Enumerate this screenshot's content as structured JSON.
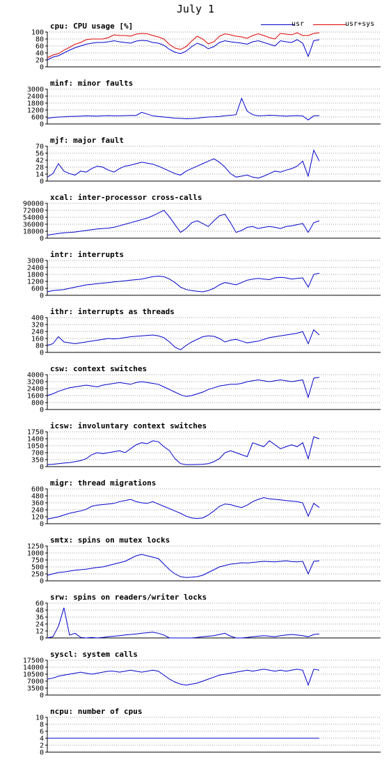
{
  "title": "July 1",
  "legend": [
    {
      "label": "usr",
      "color": "#0000cc"
    },
    {
      "label": "usr+sys",
      "color": "#dd0000"
    }
  ],
  "chart_data": [
    {
      "type": "line",
      "id": "cpu",
      "title": "cpu: CPU usage [%]",
      "ylim": [
        0,
        100
      ],
      "yticks": [
        "100",
        "80",
        "60",
        "40",
        "20",
        "0"
      ],
      "grid": true,
      "series": [
        {
          "name": "usr",
          "color": "#0000cc",
          "values": [
            20,
            28,
            32,
            40,
            48,
            55,
            60,
            65,
            68,
            70,
            70,
            72,
            75,
            72,
            70,
            68,
            74,
            76,
            75,
            70,
            68,
            62,
            50,
            42,
            38,
            45,
            58,
            68,
            62,
            52,
            58,
            70,
            75,
            72,
            70,
            68,
            65,
            72,
            75,
            70,
            65,
            60,
            75,
            72,
            70,
            78,
            68,
            30,
            75,
            78
          ]
        },
        {
          "name": "usr+sys",
          "color": "#dd0000",
          "values": [
            26,
            34,
            38,
            48,
            56,
            65,
            70,
            78,
            80,
            80,
            80,
            84,
            92,
            90,
            90,
            88,
            94,
            96,
            95,
            90,
            86,
            80,
            64,
            54,
            50,
            58,
            74,
            88,
            80,
            66,
            72,
            88,
            95,
            92,
            88,
            86,
            82,
            90,
            95,
            90,
            84,
            80,
            96,
            94,
            92,
            98,
            90,
            90,
            96,
            98
          ]
        }
      ]
    },
    {
      "type": "line",
      "id": "minf",
      "title": "minf: minor faults",
      "ylim": [
        0,
        3000
      ],
      "yticks": [
        "3000",
        "2400",
        "1800",
        "1200",
        "600",
        "0"
      ],
      "grid": true,
      "series": [
        {
          "color": "#0000cc",
          "values": [
            500,
            550,
            600,
            620,
            640,
            660,
            680,
            700,
            690,
            680,
            700,
            720,
            710,
            700,
            720,
            730,
            740,
            1000,
            850,
            700,
            650,
            600,
            550,
            500,
            480,
            450,
            460,
            500,
            550,
            600,
            620,
            650,
            700,
            750,
            800,
            2200,
            1100,
            800,
            700,
            720,
            750,
            740,
            700,
            680,
            700,
            720,
            690,
            350,
            700,
            720
          ]
        }
      ]
    },
    {
      "type": "line",
      "id": "mjf",
      "title": "mjf: major fault",
      "ylim": [
        0,
        70
      ],
      "yticks": [
        "70",
        "56",
        "42",
        "28",
        "14",
        "0"
      ],
      "grid": true,
      "series": [
        {
          "color": "#0000cc",
          "values": [
            8,
            15,
            35,
            20,
            15,
            12,
            20,
            18,
            25,
            30,
            28,
            22,
            18,
            25,
            30,
            32,
            35,
            38,
            36,
            34,
            30,
            25,
            20,
            15,
            12,
            20,
            25,
            30,
            35,
            40,
            45,
            38,
            28,
            15,
            8,
            10,
            12,
            8,
            6,
            10,
            15,
            20,
            18,
            22,
            25,
            30,
            40,
            10,
            62,
            40
          ]
        }
      ]
    },
    {
      "type": "line",
      "id": "xcal",
      "title": "xcal: inter-processor cross-calls",
      "ylim": [
        0,
        90000
      ],
      "yticks": [
        "90000",
        "72000",
        "54000",
        "36000",
        "18000",
        "0"
      ],
      "grid": true,
      "series": [
        {
          "color": "#0000cc",
          "values": [
            8000,
            10000,
            12000,
            14000,
            15000,
            16000,
            18000,
            20000,
            22000,
            24000,
            25000,
            26000,
            28000,
            32000,
            36000,
            40000,
            44000,
            48000,
            52000,
            58000,
            65000,
            72000,
            55000,
            35000,
            15000,
            25000,
            40000,
            45000,
            38000,
            30000,
            45000,
            58000,
            62000,
            40000,
            15000,
            20000,
            28000,
            30000,
            25000,
            28000,
            30000,
            28000,
            25000,
            30000,
            32000,
            35000,
            38000,
            15000,
            40000,
            45000
          ]
        }
      ]
    },
    {
      "type": "line",
      "id": "intr",
      "title": "intr: interrupts",
      "ylim": [
        0,
        3000
      ],
      "yticks": [
        "3000",
        "2400",
        "1800",
        "1200",
        "600",
        "0"
      ],
      "grid": true,
      "series": [
        {
          "color": "#0000cc",
          "values": [
            300,
            400,
            450,
            500,
            600,
            700,
            800,
            900,
            950,
            1000,
            1050,
            1100,
            1150,
            1200,
            1250,
            1300,
            1350,
            1400,
            1500,
            1600,
            1650,
            1600,
            1400,
            1100,
            700,
            500,
            400,
            350,
            300,
            400,
            600,
            900,
            1100,
            1000,
            900,
            1100,
            1300,
            1400,
            1450,
            1400,
            1350,
            1500,
            1550,
            1500,
            1400,
            1450,
            1500,
            700,
            1800,
            1900
          ]
        }
      ]
    },
    {
      "type": "line",
      "id": "ithr",
      "title": "ithr: interrupts as threads",
      "ylim": [
        0,
        400
      ],
      "yticks": [
        "400",
        "320",
        "240",
        "160",
        "80",
        "0"
      ],
      "grid": true,
      "series": [
        {
          "color": "#0000cc",
          "values": [
            80,
            100,
            180,
            120,
            110,
            100,
            110,
            120,
            130,
            140,
            150,
            160,
            155,
            160,
            170,
            180,
            185,
            190,
            195,
            200,
            190,
            170,
            120,
            60,
            30,
            80,
            120,
            150,
            180,
            190,
            185,
            160,
            120,
            140,
            150,
            130,
            110,
            120,
            130,
            150,
            170,
            180,
            190,
            200,
            210,
            220,
            240,
            100,
            260,
            200
          ]
        }
      ]
    },
    {
      "type": "line",
      "id": "csw",
      "title": "csw: context switches",
      "ylim": [
        0,
        4000
      ],
      "yticks": [
        "4000",
        "3200",
        "2400",
        "1600",
        "800",
        "0"
      ],
      "grid": true,
      "series": [
        {
          "color": "#0000cc",
          "values": [
            1600,
            1800,
            2100,
            2300,
            2500,
            2600,
            2700,
            2800,
            2700,
            2600,
            2800,
            2900,
            3000,
            3100,
            3000,
            2900,
            3100,
            3200,
            3100,
            3000,
            2900,
            2600,
            2300,
            2000,
            1700,
            1500,
            1600,
            1800,
            2000,
            2300,
            2500,
            2700,
            2800,
            2900,
            2900,
            3000,
            3200,
            3300,
            3400,
            3300,
            3200,
            3300,
            3400,
            3300,
            3200,
            3300,
            3400,
            1400,
            3600,
            3700
          ]
        }
      ]
    },
    {
      "type": "line",
      "id": "icsw",
      "title": "icsw: involuntary context switches",
      "ylim": [
        0,
        1750
      ],
      "yticks": [
        "1750",
        "1400",
        "1050",
        "700",
        "350",
        "0"
      ],
      "grid": true,
      "series": [
        {
          "color": "#0000cc",
          "values": [
            100,
            120,
            150,
            180,
            200,
            250,
            300,
            400,
            600,
            700,
            650,
            700,
            750,
            800,
            700,
            900,
            1100,
            1200,
            1150,
            1300,
            1250,
            1000,
            800,
            400,
            150,
            100,
            100,
            110,
            120,
            150,
            250,
            400,
            700,
            800,
            700,
            600,
            500,
            1200,
            1100,
            1000,
            1300,
            1100,
            900,
            1000,
            1100,
            1000,
            1200,
            400,
            1500,
            1400
          ]
        }
      ]
    },
    {
      "type": "line",
      "id": "migr",
      "title": "migr: thread migrations",
      "ylim": [
        0,
        600
      ],
      "yticks": [
        "600",
        "480",
        "360",
        "240",
        "120",
        "0"
      ],
      "grid": true,
      "series": [
        {
          "color": "#0000cc",
          "values": [
            80,
            100,
            120,
            150,
            180,
            200,
            220,
            250,
            300,
            320,
            330,
            340,
            350,
            380,
            400,
            420,
            380,
            360,
            350,
            380,
            340,
            300,
            260,
            220,
            180,
            130,
            100,
            90,
            100,
            150,
            220,
            300,
            340,
            330,
            300,
            280,
            320,
            380,
            420,
            450,
            430,
            420,
            410,
            400,
            390,
            380,
            360,
            130,
            350,
            280
          ]
        }
      ]
    },
    {
      "type": "line",
      "id": "smtx",
      "title": "smtx: spins on mutex locks",
      "ylim": [
        0,
        1250
      ],
      "yticks": [
        "1250",
        "1000",
        "750",
        "500",
        "250",
        "0"
      ],
      "grid": true,
      "series": [
        {
          "color": "#0000cc",
          "values": [
            200,
            250,
            300,
            320,
            350,
            380,
            400,
            420,
            450,
            480,
            500,
            550,
            600,
            650,
            700,
            800,
            900,
            950,
            900,
            850,
            800,
            600,
            400,
            250,
            150,
            120,
            130,
            150,
            200,
            300,
            400,
            500,
            550,
            600,
            620,
            650,
            640,
            660,
            680,
            700,
            690,
            680,
            700,
            720,
            690,
            680,
            700,
            250,
            700,
            720
          ]
        }
      ]
    },
    {
      "type": "line",
      "id": "srw",
      "title": "srw: spins on readers/writer locks",
      "ylim": [
        0,
        60
      ],
      "yticks": [
        "60",
        "48",
        "36",
        "24",
        "12",
        "0"
      ],
      "grid": true,
      "series": [
        {
          "color": "#0000cc",
          "values": [
            0,
            2,
            20,
            52,
            5,
            8,
            1,
            0,
            1,
            0,
            1,
            2,
            3,
            4,
            5,
            6,
            7,
            8,
            9,
            10,
            8,
            5,
            0,
            0,
            0,
            0,
            0,
            1,
            2,
            3,
            4,
            6,
            8,
            3,
            0,
            0,
            1,
            2,
            3,
            4,
            3,
            2,
            4,
            5,
            6,
            5,
            4,
            2,
            6,
            7
          ]
        }
      ]
    },
    {
      "type": "line",
      "id": "syscl",
      "title": "syscl: system calls",
      "ylim": [
        0,
        17500
      ],
      "yticks": [
        "17500",
        "14000",
        "10500",
        "7000",
        "3500",
        "0"
      ],
      "grid": true,
      "series": [
        {
          "color": "#0000cc",
          "values": [
            8000,
            8500,
            9500,
            10000,
            10500,
            11000,
            11500,
            11000,
            10500,
            11000,
            11500,
            12000,
            12000,
            11500,
            12000,
            12500,
            12000,
            11500,
            12000,
            12500,
            12000,
            10000,
            8000,
            6500,
            5500,
            5000,
            5500,
            6000,
            7000,
            8000,
            9000,
            10000,
            10500,
            11000,
            11500,
            12000,
            12500,
            12000,
            12500,
            13000,
            12500,
            12000,
            12500,
            12000,
            12500,
            13000,
            12500,
            5000,
            13000,
            12500
          ]
        }
      ]
    },
    {
      "type": "line",
      "id": "ncpu",
      "title": "ncpu: number of cpus",
      "ylim": [
        0,
        10
      ],
      "yticks": [
        "10",
        "8",
        "6",
        "4",
        "2",
        "0"
      ],
      "grid": true,
      "series": [
        {
          "color": "#0000cc",
          "values": [
            4,
            4,
            4,
            4,
            4,
            4,
            4,
            4,
            4,
            4,
            4,
            4,
            4,
            4,
            4,
            4,
            4,
            4,
            4,
            4,
            4,
            4,
            4,
            4,
            4,
            4,
            4,
            4,
            4,
            4,
            4,
            4,
            4,
            4,
            4,
            4,
            4,
            4,
            4,
            4,
            4,
            4,
            4,
            4,
            4,
            4,
            4,
            4,
            4,
            4
          ]
        }
      ]
    }
  ]
}
